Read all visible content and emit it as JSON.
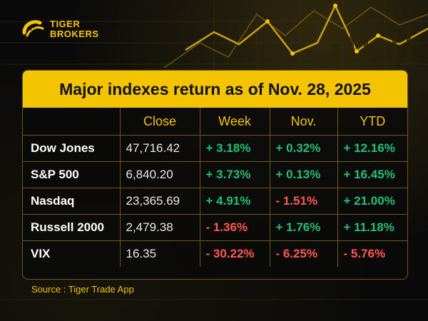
{
  "brand": {
    "line1": "TIGER",
    "line2": "BROKERS"
  },
  "title": "Major indexes return as of Nov. 28, 2025",
  "table": {
    "headers": [
      "",
      "Close",
      "Week",
      "Nov.",
      "YTD"
    ],
    "rows": [
      {
        "name": "Dow Jones",
        "close": "47,716.42",
        "week": "+ 3.18%",
        "nov": "+ 0.32%",
        "ytd": "+ 12.16%"
      },
      {
        "name": "S&P 500",
        "close": "6,840.20",
        "week": "+ 3.73%",
        "nov": "+ 0.13%",
        "ytd": "+ 16.45%"
      },
      {
        "name": "Nasdaq",
        "close": "23,365.69",
        "week": "+ 4.91%",
        "nov": "- 1.51%",
        "ytd": "+ 21.00%"
      },
      {
        "name": "Russell 2000",
        "close": "2,479.38",
        "week": "- 1.36%",
        "nov": "+ 1.76%",
        "ytd": "+ 11.18%"
      },
      {
        "name": "VIX",
        "close": "16.35",
        "week": "- 30.22%",
        "nov": "- 6.25%",
        "ytd": "- 5.76%"
      }
    ]
  },
  "source": "Source : Tiger Trade App",
  "colors": {
    "accent": "#f5c400",
    "positive": "#22c07a",
    "negative": "#ff5a4e",
    "background": "#0a0a0a"
  }
}
